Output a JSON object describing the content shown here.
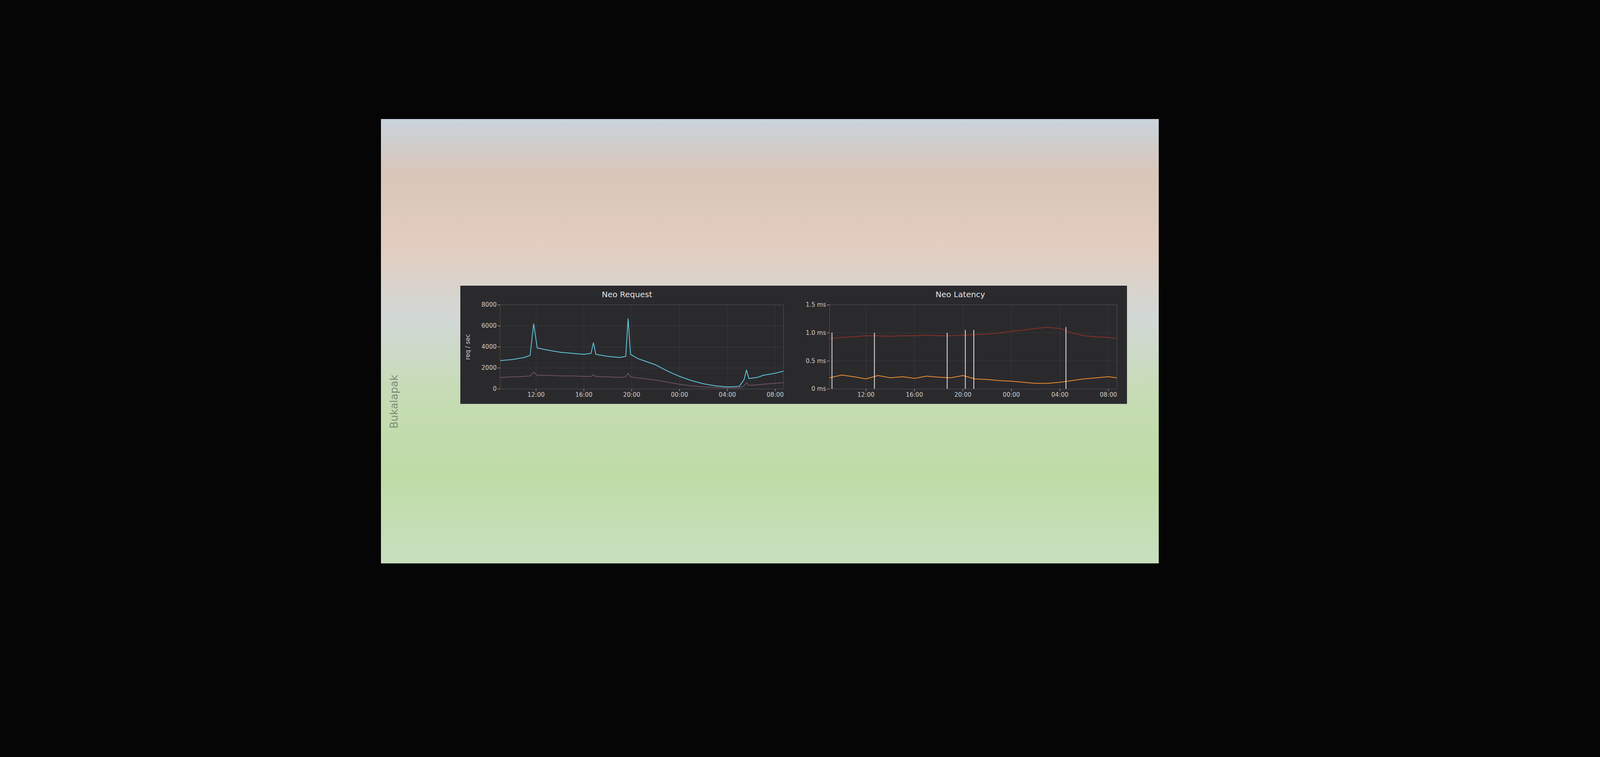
{
  "slide": {
    "label": "Bukalapak"
  },
  "chart_data": [
    {
      "type": "line",
      "title": "Neo Request",
      "y_label": "req / sec",
      "x": [
        9,
        10,
        11,
        11.5,
        11.8,
        12.1,
        13,
        14,
        15,
        16,
        16.6,
        16.8,
        17,
        18,
        19,
        19.5,
        19.7,
        19.9,
        20.5,
        21,
        22,
        23,
        24,
        25,
        26,
        27,
        28,
        29,
        29.4,
        29.6,
        29.8,
        30.5,
        31,
        32,
        32.7
      ],
      "series": [
        {
          "color": "#62c6dd",
          "values": [
            2700,
            2800,
            3000,
            3200,
            6200,
            3900,
            3700,
            3500,
            3400,
            3300,
            3400,
            4400,
            3300,
            3100,
            3000,
            3100,
            6700,
            3300,
            2900,
            2700,
            2300,
            1700,
            1200,
            800,
            500,
            300,
            200,
            250,
            900,
            1800,
            1000,
            1100,
            1300,
            1500,
            1700
          ]
        },
        {
          "color": "#6e4f63",
          "values": [
            1100,
            1150,
            1200,
            1250,
            1600,
            1300,
            1300,
            1250,
            1250,
            1200,
            1200,
            1350,
            1200,
            1150,
            1100,
            1150,
            1500,
            1150,
            1050,
            1000,
            850,
            650,
            450,
            300,
            200,
            150,
            100,
            120,
            300,
            600,
            350,
            400,
            450,
            550,
            600
          ]
        }
      ],
      "xlim": [
        9,
        32.7
      ],
      "xticks": [
        {
          "value": 12,
          "label": "12:00"
        },
        {
          "value": 16,
          "label": "16:00"
        },
        {
          "value": 20,
          "label": "20:00"
        },
        {
          "value": 24,
          "label": "00:00"
        },
        {
          "value": 28,
          "label": "04:00"
        },
        {
          "value": 32,
          "label": "08:00"
        }
      ],
      "ylim": [
        0,
        8000
      ],
      "yticks": [
        0,
        2000,
        4000,
        6000,
        8000
      ],
      "grid": true
    },
    {
      "type": "line",
      "title": "Neo Latency",
      "x": [
        9,
        10,
        11,
        12,
        13,
        14,
        15,
        16,
        17,
        18,
        19,
        20,
        21,
        22,
        23,
        24,
        25,
        26,
        27,
        28,
        29,
        30,
        31,
        32,
        32.7
      ],
      "series": [
        {
          "color": "#8a2f26",
          "values": [
            0.9,
            0.92,
            0.93,
            0.95,
            0.95,
            0.94,
            0.95,
            0.95,
            0.96,
            0.95,
            0.95,
            0.96,
            0.97,
            0.98,
            1.0,
            1.03,
            1.05,
            1.08,
            1.1,
            1.08,
            1.0,
            0.95,
            0.93,
            0.92,
            0.9
          ]
        },
        {
          "color": "#e8892e",
          "values": [
            0.2,
            0.25,
            0.22,
            0.18,
            0.24,
            0.2,
            0.22,
            0.19,
            0.23,
            0.21,
            0.2,
            0.24,
            0.18,
            0.17,
            0.15,
            0.14,
            0.12,
            0.1,
            0.1,
            0.12,
            0.15,
            0.18,
            0.2,
            0.22,
            0.2
          ]
        },
        {
          "type": "rule",
          "color": "#e4e4e4",
          "x": [
            9.2,
            12.7,
            18.7,
            20.2,
            20.9,
            28.5
          ],
          "values": [
            1.0,
            1.0,
            1.0,
            1.05,
            1.05,
            1.1
          ]
        }
      ],
      "xlim": [
        9,
        32.7
      ],
      "xticks": [
        {
          "value": 12,
          "label": "12:00"
        },
        {
          "value": 16,
          "label": "16:00"
        },
        {
          "value": 20,
          "label": "20:00"
        },
        {
          "value": 24,
          "label": "00:00"
        },
        {
          "value": 28,
          "label": "04:00"
        },
        {
          "value": 32,
          "label": "08:00"
        }
      ],
      "ylim": [
        0,
        1.5
      ],
      "yticks": [
        {
          "value": 0,
          "label": "0 ms"
        },
        {
          "value": 0.5,
          "label": "0.5 ms"
        },
        {
          "value": 1.0,
          "label": "1.0 ms"
        },
        {
          "value": 1.5,
          "label": "1.5 ms"
        }
      ],
      "grid": true
    }
  ]
}
